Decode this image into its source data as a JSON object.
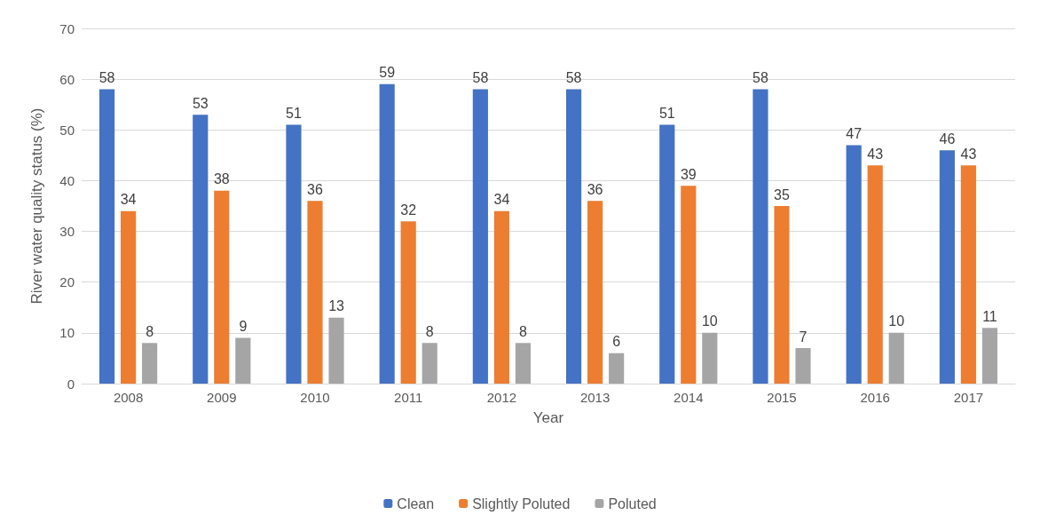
{
  "chart_data": {
    "type": "bar",
    "xlabel": "Year",
    "ylabel": "River water quality status (%)",
    "categories": [
      "2008",
      "2009",
      "2010",
      "2011",
      "2012",
      "2013",
      "2014",
      "2015",
      "2016",
      "2017"
    ],
    "series": [
      {
        "name": "Clean",
        "color": "#4472c4",
        "values": [
          58,
          53,
          51,
          59,
          58,
          58,
          51,
          58,
          47,
          46
        ]
      },
      {
        "name": "Slightly Poluted",
        "color": "#ed7d31",
        "values": [
          34,
          38,
          36,
          32,
          34,
          36,
          39,
          35,
          43,
          43
        ]
      },
      {
        "name": "Poluted",
        "color": "#a5a5a5",
        "values": [
          8,
          9,
          13,
          8,
          8,
          6,
          10,
          7,
          10,
          11
        ]
      }
    ],
    "ylim": [
      0,
      70
    ],
    "yticks": [
      0,
      10,
      20,
      30,
      40,
      50,
      60,
      70
    ],
    "grid": "y",
    "legend": "bottom",
    "data_labels": true
  }
}
